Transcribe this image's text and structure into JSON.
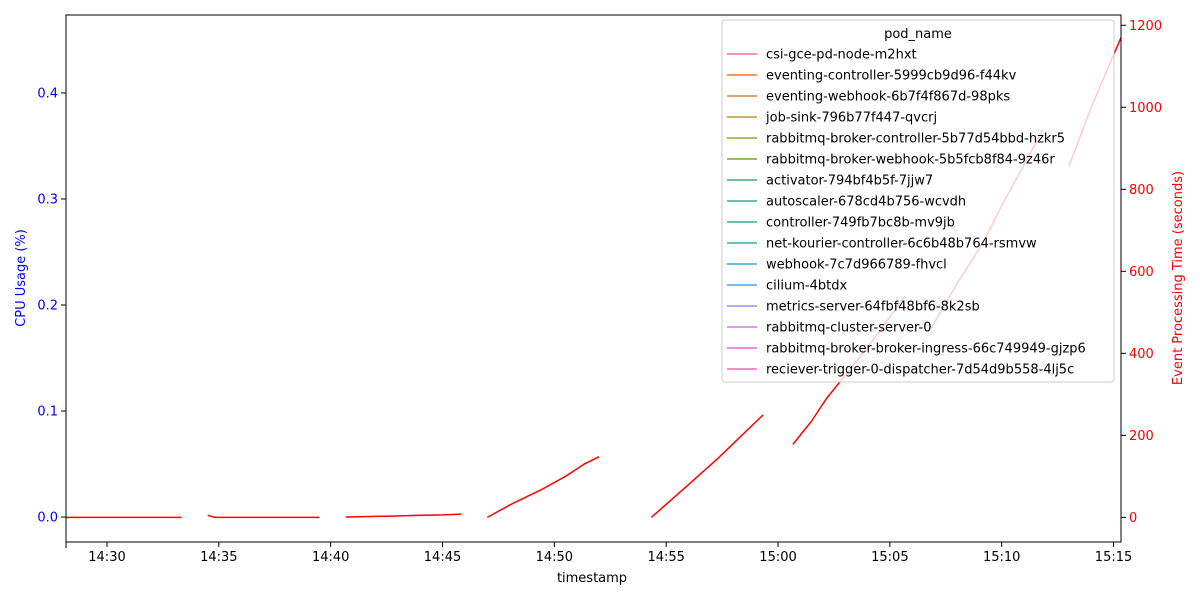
{
  "chart_data": {
    "type": "line",
    "xlabel": "timestamp",
    "ylabel_left": "CPU Usage (%)",
    "ylabel_right": "Event Processing Time (seconds)",
    "x_range_minutes": [
      "14:28:10",
      "15:15:20"
    ],
    "x_ticks": [
      "14:30",
      "14:35",
      "14:40",
      "14:45",
      "14:50",
      "14:55",
      "15:00",
      "15:05",
      "15:10",
      "15:15"
    ],
    "ylim_left": [
      -0.0235,
      0.4735
    ],
    "y_ticks_left": [
      0.0,
      0.1,
      0.2,
      0.3,
      0.4
    ],
    "y_ticks_left_labels": [
      "0.0",
      "0.1",
      "0.2",
      "0.3",
      "0.4"
    ],
    "ylim_right": [
      -60,
      1225
    ],
    "y_ticks_right": [
      0,
      200,
      400,
      600,
      800,
      1000,
      1200
    ],
    "legend": {
      "title": "pod_name",
      "placement": "top-right",
      "entries": [
        {
          "name": "csi-gce-pd-node-m2hxt",
          "color": "#f77189"
        },
        {
          "name": "eventing-controller-5999cb9d96-f44kv",
          "color": "#f37932"
        },
        {
          "name": "eventing-webhook-6b7f4f867d-98pks",
          "color": "#cf8a32"
        },
        {
          "name": "job-sink-796b77f447-qvcrj",
          "color": "#b39a32"
        },
        {
          "name": "rabbitmq-broker-controller-5b77d54bbd-hzkr5",
          "color": "#97a431"
        },
        {
          "name": "rabbitmq-broker-webhook-5b5fcb8f84-9z46r",
          "color": "#66ad31"
        },
        {
          "name": "activator-794bf4b5f-7jjw7",
          "color": "#33b16f"
        },
        {
          "name": "autoscaler-678cd4b756-wcvdh",
          "color": "#35ae93"
        },
        {
          "name": "controller-749fb7bc8b-mv9jb",
          "color": "#36aca6"
        },
        {
          "name": "net-kourier-controller-6c6b48b764-rsmvw",
          "color": "#38aab6"
        },
        {
          "name": "webhook-7c7d966789-fhvcl",
          "color": "#39a7c9"
        },
        {
          "name": "cilium-4btdx",
          "color": "#50a1f4"
        },
        {
          "name": "metrics-server-64fbf48bf6-8k2sb",
          "color": "#a48cf4"
        },
        {
          "name": "rabbitmq-cluster-server-0",
          "color": "#dc72f4"
        },
        {
          "name": "rabbitmq-broker-broker-ingress-66c749949-gjzp6",
          "color": "#f561dd"
        },
        {
          "name": "reciever-trigger-0-dispatcher-7d54d9b558-4lj5c",
          "color": "#f66bb1"
        }
      ]
    },
    "series": [
      {
        "color": "#ff0000",
        "axis": "right",
        "segments": [
          [
            [
              "14:28:10",
              0
            ],
            [
              "14:30:00",
              0
            ],
            [
              "14:33:20",
              0
            ]
          ],
          [
            [
              "14:34:30",
              5
            ],
            [
              "14:34:50",
              0
            ],
            [
              "14:37:00",
              0
            ],
            [
              "14:39:30",
              0
            ]
          ],
          [
            [
              "14:40:40",
              1
            ],
            [
              "14:42:30",
              3
            ],
            [
              "14:44:00",
              5
            ],
            [
              "14:45:00",
              6
            ],
            [
              "14:45:50",
              8
            ]
          ],
          [
            [
              "14:47:00",
              0
            ],
            [
              "14:48:00",
              30
            ],
            [
              "14:49:30",
              70
            ],
            [
              "14:50:30",
              100
            ],
            [
              "14:51:20",
              130
            ],
            [
              "14:52:00",
              148
            ]
          ],
          [
            [
              "14:54:20",
              0
            ],
            [
              "14:56:00",
              80
            ],
            [
              "14:57:20",
              145
            ],
            [
              "14:58:00",
              180
            ],
            [
              "14:59:20",
              250
            ]
          ],
          [
            [
              "15:00:40",
              178
            ],
            [
              "15:01:30",
              235
            ],
            [
              "15:02:10",
              290
            ],
            [
              "15:03:30",
              380
            ],
            [
              "15:04:30",
              450
            ],
            [
              "15:05:40",
              540
            ]
          ],
          [
            [
              "15:06:50",
              460
            ],
            [
              "15:08:00",
              570
            ],
            [
              "15:09:10",
              670
            ],
            [
              "15:10:00",
              760
            ],
            [
              "15:11:00",
              860
            ],
            [
              "15:11:50",
              945
            ]
          ],
          [
            [
              "15:13:00",
              855
            ],
            [
              "15:14:00",
              1000
            ],
            [
              "15:15:20",
              1170
            ]
          ]
        ]
      }
    ]
  }
}
